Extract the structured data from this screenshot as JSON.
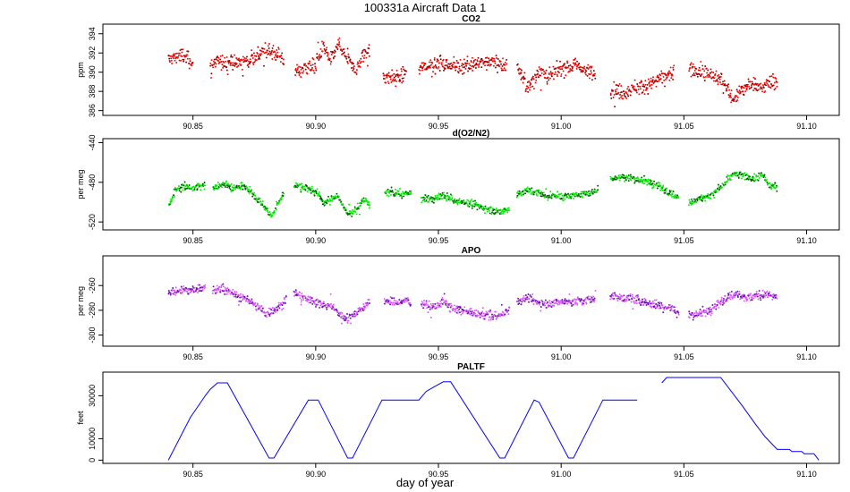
{
  "figure": {
    "title": "100331a   Aircraft Data 1",
    "xlabel": "day of year"
  },
  "chart_data": [
    {
      "type": "scatter",
      "title": "CO2",
      "ylabel": "ppm",
      "xlim": [
        90.8133,
        91.1133
      ],
      "ylim": [
        385.5,
        395
      ],
      "xticks": [
        90.85,
        90.9,
        90.95,
        91.0,
        91.05,
        91.1
      ],
      "xtick_labels": [
        "90.85",
        "90.90",
        "90.95",
        "91.00",
        "91.05",
        "91.10"
      ],
      "yticks": [
        386,
        388,
        390,
        392,
        394
      ],
      "ytick_labels": [
        "386",
        "388",
        "390",
        "392",
        "394"
      ],
      "color": "#ff0000",
      "dark_color": "#8b0000",
      "noise": 0.55,
      "knots": [
        [
          90.84,
          391.3
        ],
        [
          90.845,
          391.8
        ],
        [
          90.85,
          391.1
        ],
        [
          90.855,
          null
        ],
        [
          90.857,
          390.7
        ],
        [
          90.862,
          391.1
        ],
        [
          90.867,
          390.9
        ],
        [
          90.872,
          391.3
        ],
        [
          90.877,
          391.9
        ],
        [
          90.882,
          392.3
        ],
        [
          90.887,
          391.4
        ],
        [
          90.889,
          null
        ],
        [
          90.8915,
          390.0
        ],
        [
          90.895,
          390.4
        ],
        [
          90.9,
          390.7
        ],
        [
          90.903,
          392.6
        ],
        [
          90.906,
          391.1
        ],
        [
          90.909,
          392.8
        ],
        [
          90.913,
          391.4
        ],
        [
          90.916,
          390.1
        ],
        [
          90.919,
          391.6
        ],
        [
          90.922,
          392.6
        ],
        [
          90.924,
          null
        ],
        [
          90.9275,
          389.6
        ],
        [
          90.933,
          389.4
        ],
        [
          90.937,
          389.8
        ],
        [
          90.9385,
          null
        ],
        [
          90.942,
          390.4
        ],
        [
          90.95,
          390.9
        ],
        [
          90.958,
          390.6
        ],
        [
          90.966,
          390.9
        ],
        [
          90.972,
          391.1
        ],
        [
          90.978,
          390.7
        ],
        [
          90.98,
          null
        ],
        [
          90.982,
          390.8
        ],
        [
          90.984,
          389.3
        ],
        [
          90.987,
          388.3
        ],
        [
          90.991,
          390.2
        ],
        [
          90.995,
          389.4
        ],
        [
          91.0,
          390.4
        ],
        [
          91.005,
          390.7
        ],
        [
          91.01,
          390.3
        ],
        [
          91.014,
          389.6
        ],
        [
          91.016,
          null
        ],
        [
          91.02,
          388.1
        ],
        [
          91.025,
          387.9
        ],
        [
          91.03,
          388.4
        ],
        [
          91.035,
          388.6
        ],
        [
          91.04,
          389.3
        ],
        [
          91.046,
          390.0
        ],
        [
          91.049,
          null
        ],
        [
          91.052,
          390.3
        ],
        [
          91.057,
          390.0
        ],
        [
          91.062,
          389.6
        ],
        [
          91.065,
          389.2
        ],
        [
          91.067,
          388.6
        ],
        [
          91.07,
          387.3
        ],
        [
          91.074,
          388.3
        ],
        [
          91.078,
          388.7
        ],
        [
          91.082,
          388.2
        ],
        [
          91.085,
          389.0
        ],
        [
          91.088,
          389.1
        ]
      ]
    },
    {
      "type": "scatter",
      "title": "d(O2/N2)",
      "ylabel": "per meg",
      "xlim": [
        90.8133,
        91.1133
      ],
      "ylim": [
        -528,
        -436
      ],
      "xticks": [
        90.85,
        90.9,
        90.95,
        91.0,
        91.05,
        91.1
      ],
      "xtick_labels": [
        "90.85",
        "90.90",
        "90.95",
        "91.00",
        "91.05",
        "91.10"
      ],
      "yticks": [
        -520,
        -480,
        -440
      ],
      "ytick_labels": [
        "-520",
        "-480",
        "-440"
      ],
      "color": "#00ee00",
      "dark_color": "#005500",
      "noise": 2.6,
      "knots": [
        [
          90.84,
          -505
        ],
        [
          90.843,
          -487
        ],
        [
          90.848,
          -484
        ],
        [
          90.85,
          -486
        ],
        [
          90.855,
          -483
        ],
        [
          90.856,
          null
        ],
        [
          90.858,
          -486
        ],
        [
          90.862,
          -481
        ],
        [
          90.867,
          -486
        ],
        [
          90.871,
          -484
        ],
        [
          90.875,
          -493
        ],
        [
          90.879,
          -504
        ],
        [
          90.882,
          -514
        ],
        [
          90.885,
          -500
        ],
        [
          90.887,
          -490
        ],
        [
          90.889,
          null
        ],
        [
          90.891,
          -483
        ],
        [
          90.895,
          -485
        ],
        [
          90.898,
          -488
        ],
        [
          90.901,
          -491
        ],
        [
          90.903,
          -501
        ],
        [
          90.906,
          -498
        ],
        [
          90.909,
          -493
        ],
        [
          90.912,
          -509
        ],
        [
          90.915,
          -511
        ],
        [
          90.918,
          -503
        ],
        [
          90.92,
          -497
        ],
        [
          90.922,
          -503
        ],
        [
          90.924,
          null
        ],
        [
          90.928,
          -490
        ],
        [
          90.932,
          -491
        ],
        [
          90.936,
          -492
        ],
        [
          90.939,
          -491
        ],
        [
          90.941,
          null
        ],
        [
          90.943,
          -496
        ],
        [
          90.948,
          -497
        ],
        [
          90.952,
          -493
        ],
        [
          90.956,
          -498
        ],
        [
          90.96,
          -500
        ],
        [
          90.965,
          -503
        ],
        [
          90.97,
          -507
        ],
        [
          90.975,
          -510
        ],
        [
          90.979,
          -506
        ],
        [
          90.98,
          null
        ],
        [
          90.982,
          -493
        ],
        [
          90.986,
          -488
        ],
        [
          90.99,
          -490
        ],
        [
          90.994,
          -494
        ],
        [
          90.998,
          -493
        ],
        [
          91.002,
          -495
        ],
        [
          91.007,
          -492
        ],
        [
          91.012,
          -491
        ],
        [
          91.015,
          -487
        ],
        [
          91.017,
          null
        ],
        [
          91.02,
          -476
        ],
        [
          91.025,
          -475
        ],
        [
          91.03,
          -476
        ],
        [
          91.035,
          -479
        ],
        [
          91.04,
          -484
        ],
        [
          91.045,
          -491
        ],
        [
          91.048,
          -496
        ],
        [
          91.05,
          null
        ],
        [
          91.052,
          -500
        ],
        [
          91.056,
          -497
        ],
        [
          91.06,
          -494
        ],
        [
          91.063,
          -489
        ],
        [
          91.067,
          -480
        ],
        [
          91.07,
          -472
        ],
        [
          91.075,
          -474
        ],
        [
          91.079,
          -477
        ],
        [
          91.082,
          -472
        ],
        [
          91.085,
          -484
        ],
        [
          91.088,
          -484
        ]
      ]
    },
    {
      "type": "scatter",
      "title": "APO",
      "ylabel": "per meg",
      "xlim": [
        90.8133,
        91.1133
      ],
      "ylim": [
        -309,
        -236
      ],
      "xticks": [
        90.85,
        90.9,
        90.95,
        91.0,
        91.05,
        91.1
      ],
      "xtick_labels": [
        "90.85",
        "90.90",
        "90.95",
        "91.00",
        "91.05",
        "91.10"
      ],
      "yticks": [
        -300,
        -280,
        -260
      ],
      "ytick_labels": [
        "-300",
        "-280",
        "-260"
      ],
      "color": "#dd55ff",
      "dark_color": "#6a0dad",
      "noise": 2.5,
      "knots": [
        [
          90.84,
          -266
        ],
        [
          90.845,
          -263
        ],
        [
          90.85,
          -264
        ],
        [
          90.855,
          -262
        ],
        [
          90.856,
          null
        ],
        [
          90.858,
          -264
        ],
        [
          90.862,
          -262
        ],
        [
          90.867,
          -268
        ],
        [
          90.871,
          -270
        ],
        [
          90.875,
          -275
        ],
        [
          90.88,
          -283
        ],
        [
          90.883,
          -280
        ],
        [
          90.886,
          -276
        ],
        [
          90.888,
          -270
        ],
        [
          90.889,
          null
        ],
        [
          90.891,
          -266
        ],
        [
          90.895,
          -270
        ],
        [
          90.899,
          -272
        ],
        [
          90.903,
          -276
        ],
        [
          90.907,
          -276
        ],
        [
          90.91,
          -284
        ],
        [
          90.913,
          -287
        ],
        [
          90.916,
          -282
        ],
        [
          90.919,
          -278
        ],
        [
          90.922,
          -274
        ],
        [
          90.924,
          null
        ],
        [
          90.928,
          -272
        ],
        [
          90.933,
          -274
        ],
        [
          90.937,
          -272
        ],
        [
          90.939,
          -274
        ],
        [
          90.941,
          null
        ],
        [
          90.943,
          -274
        ],
        [
          90.948,
          -278
        ],
        [
          90.952,
          -273
        ],
        [
          90.956,
          -279
        ],
        [
          90.961,
          -281
        ],
        [
          90.966,
          -283
        ],
        [
          90.971,
          -284
        ],
        [
          90.976,
          -284
        ],
        [
          90.979,
          -279
        ],
        [
          90.98,
          null
        ],
        [
          90.982,
          -273
        ],
        [
          90.986,
          -270
        ],
        [
          90.99,
          -273
        ],
        [
          90.994,
          -275
        ],
        [
          90.999,
          -273
        ],
        [
          91.004,
          -273
        ],
        [
          91.009,
          -272
        ],
        [
          91.014,
          -271
        ],
        [
          91.016,
          null
        ],
        [
          91.02,
          -268
        ],
        [
          91.025,
          -270
        ],
        [
          91.03,
          -271
        ],
        [
          91.035,
          -274
        ],
        [
          91.04,
          -276
        ],
        [
          91.045,
          -278
        ],
        [
          91.048,
          -282
        ],
        [
          91.05,
          null
        ],
        [
          91.052,
          -284
        ],
        [
          91.056,
          -282
        ],
        [
          91.06,
          -281
        ],
        [
          91.064,
          -275
        ],
        [
          91.068,
          -268
        ],
        [
          91.072,
          -267
        ],
        [
          91.076,
          -270
        ],
        [
          91.08,
          -268
        ],
        [
          91.084,
          -267
        ],
        [
          91.088,
          -270
        ]
      ]
    },
    {
      "type": "line",
      "title": "PALTF",
      "ylabel": "feet",
      "xlim": [
        90.8133,
        91.1133
      ],
      "ylim": [
        -1500,
        41000
      ],
      "xticks": [
        90.85,
        90.9,
        90.95,
        91.0,
        91.05,
        91.1
      ],
      "xtick_labels": [
        "90.85",
        "90.90",
        "90.95",
        "91.00",
        "91.05",
        "91.10"
      ],
      "yticks": [
        0,
        10000,
        30000
      ],
      "ytick_labels": [
        "0",
        "10000",
        "30000"
      ],
      "color": "#0000ff",
      "segments": [
        [
          [
            90.84,
            0
          ],
          [
            90.849,
            20000
          ],
          [
            90.852,
            25000
          ],
          [
            90.855,
            30000
          ],
          [
            90.857,
            33000
          ],
          [
            90.86,
            36000
          ],
          [
            90.863,
            36000
          ],
          [
            90.864,
            36000
          ],
          [
            90.881,
            1000
          ],
          [
            90.883,
            1000
          ],
          [
            90.897,
            28000
          ],
          [
            90.901,
            28000
          ],
          [
            90.913,
            1000
          ],
          [
            90.915,
            1000
          ],
          [
            90.927,
            28000
          ],
          [
            90.942,
            28000
          ],
          [
            90.945,
            32000
          ],
          [
            90.948,
            34000
          ],
          [
            90.952,
            36500
          ],
          [
            90.955,
            36500
          ],
          [
            90.975,
            1000
          ],
          [
            90.977,
            1000
          ],
          [
            90.989,
            28000
          ],
          [
            90.991,
            27000
          ],
          [
            91.003,
            1000
          ],
          [
            91.005,
            1000
          ],
          [
            91.017,
            28000
          ],
          [
            91.031,
            28000
          ]
        ],
        [
          [
            91.041,
            36000
          ],
          [
            91.043,
            38500
          ],
          [
            91.065,
            38500
          ],
          [
            91.072,
            28000
          ],
          [
            91.074,
            25000
          ],
          [
            91.079,
            17000
          ],
          [
            91.083,
            11000
          ],
          [
            91.088,
            5000
          ],
          [
            91.093,
            5000
          ],
          [
            91.094,
            4000
          ],
          [
            91.098,
            4000
          ],
          [
            91.099,
            3000
          ],
          [
            91.103,
            3000
          ],
          [
            91.105,
            0
          ]
        ]
      ]
    }
  ]
}
